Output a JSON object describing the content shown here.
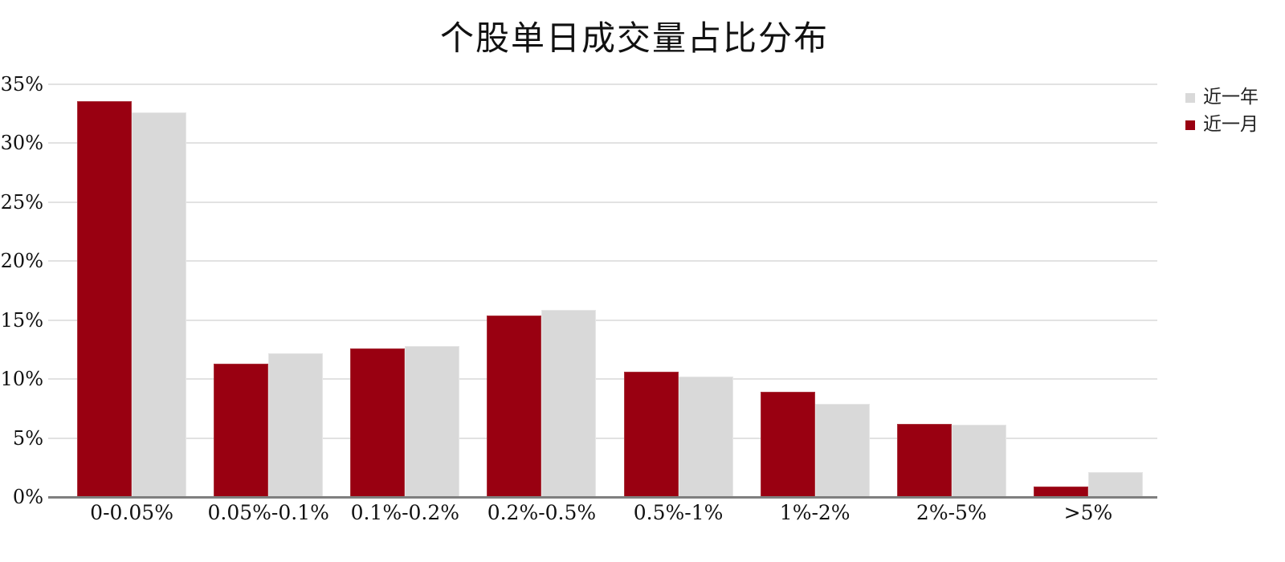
{
  "title": "个股单日成交量占比分布",
  "colors": {
    "series_recent_month": "#990011",
    "series_recent_month_border": "#aa333d",
    "series_recent_year": "#d9d9d9",
    "series_recent_year_border": "#e6e6e6",
    "gridline": "#e2e2e2",
    "axis_line": "#7f7f7f",
    "background": "#ffffff",
    "text": "#111111"
  },
  "legend": [
    {
      "label": "近一年",
      "color": "#d9d9d9"
    },
    {
      "label": "近一月",
      "color": "#990011"
    }
  ],
  "chart_data": {
    "type": "bar",
    "title": "个股单日成交量占比分布",
    "categories": [
      "0-0.05%",
      "0.05%-0.1%",
      "0.1%-0.2%",
      "0.2%-0.5%",
      "0.5%-1%",
      "1%-2%",
      "2%-5%",
      ">5%"
    ],
    "series": [
      {
        "name": "近一月",
        "key": "s-month",
        "color": "#990011",
        "values": [
          33.6,
          11.3,
          12.6,
          15.4,
          10.6,
          8.9,
          6.2,
          0.9
        ]
      },
      {
        "name": "近一年",
        "key": "s-year",
        "color": "#d9d9d9",
        "values": [
          32.6,
          12.2,
          12.8,
          15.9,
          10.2,
          7.9,
          6.1,
          2.1
        ]
      }
    ],
    "xlabel": "",
    "ylabel": "",
    "ylim": [
      0,
      35
    ],
    "ytick_step": 5,
    "yticks": [
      "0%",
      "5%",
      "10%",
      "15%",
      "20%",
      "25%",
      "30%",
      "35%"
    ],
    "grid": true,
    "legend_position": "top-right"
  }
}
